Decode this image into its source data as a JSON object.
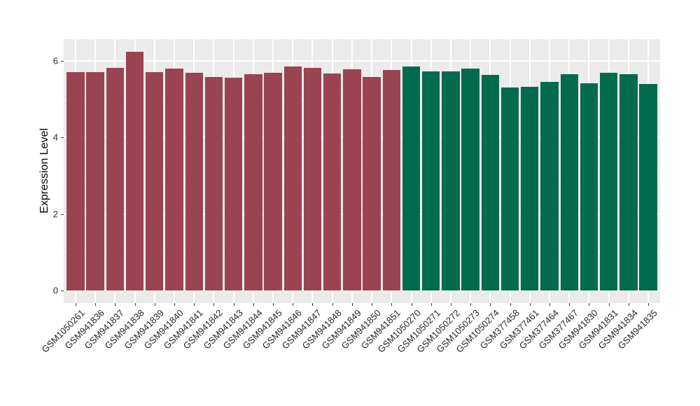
{
  "figure": {
    "background": "#FFFFFF",
    "panel_background": "#EBEBEB",
    "grid_color": "#FFFFFF",
    "axis_text_color": "#262626",
    "tick_mark_color": "#333333"
  },
  "chart_data": {
    "type": "bar",
    "title": "",
    "xlabel": "",
    "ylabel": "Expression Level",
    "ylim": [
      -0.33,
      6.57
    ],
    "yticks": [
      0,
      2,
      4,
      6
    ],
    "grid": "on",
    "legend": "none",
    "group_colors": [
      "#9A4453",
      "#026B4D"
    ],
    "categories": [
      "GSM1050261",
      "GSM941836",
      "GSM941837",
      "GSM941838",
      "GSM941839",
      "GSM941840",
      "GSM941841",
      "GSM941842",
      "GSM941843",
      "GSM941844",
      "GSM941845",
      "GSM941846",
      "GSM941847",
      "GSM941848",
      "GSM941849",
      "GSM941850",
      "GSM941851",
      "GSM1050270",
      "GSM1050271",
      "GSM1050272",
      "GSM1050273",
      "GSM1050274",
      "GSM377458",
      "GSM377461",
      "GSM377464",
      "GSM377467",
      "GSM941830",
      "GSM941831",
      "GSM941834",
      "GSM941835"
    ],
    "values": [
      5.71,
      5.71,
      5.82,
      6.24,
      5.7,
      5.79,
      5.69,
      5.58,
      5.56,
      5.66,
      5.69,
      5.86,
      5.82,
      5.67,
      5.78,
      5.58,
      5.76,
      5.86,
      5.73,
      5.73,
      5.8,
      5.64,
      5.3,
      5.33,
      5.46,
      5.65,
      5.41,
      5.68,
      5.65,
      5.39
    ],
    "group_index": [
      0,
      0,
      0,
      0,
      0,
      0,
      0,
      0,
      0,
      0,
      0,
      0,
      0,
      0,
      0,
      0,
      0,
      1,
      1,
      1,
      1,
      1,
      1,
      1,
      1,
      1,
      1,
      1,
      1,
      1
    ]
  }
}
